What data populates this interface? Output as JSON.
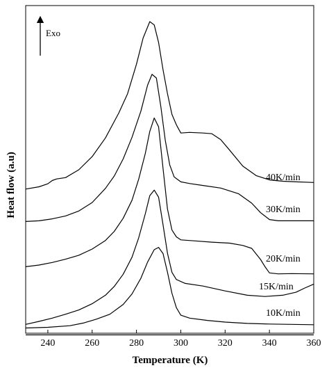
{
  "chart_data": {
    "type": "line",
    "title": "",
    "xlabel": "Temperature (K)",
    "ylabel": "Heat flow (a.u)",
    "xlim": [
      230,
      360
    ],
    "ylim": [
      0,
      100
    ],
    "xticks": [
      240,
      260,
      280,
      300,
      320,
      340,
      360
    ],
    "grid": false,
    "annotation": "Exo",
    "series": [
      {
        "name": "40K/min",
        "color": "#000000",
        "points": [
          [
            230,
            44.0
          ],
          [
            236,
            44.7
          ],
          [
            240,
            45.6
          ],
          [
            242,
            46.6
          ],
          [
            244,
            47.1
          ],
          [
            248,
            47.5
          ],
          [
            254,
            49.9
          ],
          [
            260,
            53.9
          ],
          [
            266,
            59.6
          ],
          [
            272,
            67.2
          ],
          [
            276,
            73.1
          ],
          [
            280,
            82.1
          ],
          [
            283,
            90.1
          ],
          [
            286,
            95.1
          ],
          [
            288,
            94.1
          ],
          [
            290,
            88.7
          ],
          [
            292,
            80.4
          ],
          [
            294,
            73.1
          ],
          [
            296,
            66.8
          ],
          [
            298,
            63.6
          ],
          [
            300,
            61.1
          ],
          [
            304,
            61.3
          ],
          [
            310,
            61.1
          ],
          [
            314,
            60.9
          ],
          [
            318,
            59.1
          ],
          [
            322,
            55.9
          ],
          [
            328,
            51.0
          ],
          [
            334,
            48.1
          ],
          [
            340,
            46.8
          ],
          [
            346,
            46.4
          ],
          [
            352,
            46.2
          ],
          [
            360,
            46.0
          ]
        ]
      },
      {
        "name": "30K/min",
        "color": "#000000",
        "points": [
          [
            230,
            34.1
          ],
          [
            236,
            34.3
          ],
          [
            242,
            34.9
          ],
          [
            248,
            35.8
          ],
          [
            254,
            37.3
          ],
          [
            260,
            39.9
          ],
          [
            266,
            44.2
          ],
          [
            270,
            48.0
          ],
          [
            274,
            53.2
          ],
          [
            278,
            59.8
          ],
          [
            282,
            67.8
          ],
          [
            285,
            75.7
          ],
          [
            287,
            79.0
          ],
          [
            289,
            77.9
          ],
          [
            291,
            69.2
          ],
          [
            293,
            58.9
          ],
          [
            295,
            51.4
          ],
          [
            297,
            47.7
          ],
          [
            300,
            46.2
          ],
          [
            304,
            45.7
          ],
          [
            310,
            45.1
          ],
          [
            318,
            44.3
          ],
          [
            326,
            42.6
          ],
          [
            332,
            39.7
          ],
          [
            336,
            36.8
          ],
          [
            340,
            34.7
          ],
          [
            344,
            34.3
          ],
          [
            350,
            34.3
          ],
          [
            360,
            34.3
          ]
        ]
      },
      {
        "name": "20K/min",
        "color": "#000000",
        "points": [
          [
            230,
            20.3
          ],
          [
            236,
            20.8
          ],
          [
            242,
            21.6
          ],
          [
            248,
            22.6
          ],
          [
            254,
            23.8
          ],
          [
            260,
            25.7
          ],
          [
            266,
            28.3
          ],
          [
            270,
            31.1
          ],
          [
            274,
            35.1
          ],
          [
            278,
            40.6
          ],
          [
            281,
            47.0
          ],
          [
            284,
            54.9
          ],
          [
            286,
            61.6
          ],
          [
            288,
            65.7
          ],
          [
            290,
            63.0
          ],
          [
            292,
            50.3
          ],
          [
            294,
            37.9
          ],
          [
            296,
            31.5
          ],
          [
            298,
            29.4
          ],
          [
            300,
            28.5
          ],
          [
            306,
            28.2
          ],
          [
            314,
            27.8
          ],
          [
            322,
            27.5
          ],
          [
            328,
            26.8
          ],
          [
            332,
            25.9
          ],
          [
            336,
            22.5
          ],
          [
            338,
            20.3
          ],
          [
            340,
            18.4
          ],
          [
            344,
            18.1
          ],
          [
            350,
            18.2
          ],
          [
            360,
            18.1
          ]
        ]
      },
      {
        "name": "15K/min",
        "color": "#000000",
        "points": [
          [
            230,
            2.7
          ],
          [
            236,
            3.6
          ],
          [
            242,
            4.6
          ],
          [
            248,
            5.8
          ],
          [
            254,
            7.1
          ],
          [
            260,
            9.0
          ],
          [
            266,
            11.6
          ],
          [
            270,
            14.3
          ],
          [
            274,
            18.0
          ],
          [
            278,
            23.2
          ],
          [
            281,
            29.1
          ],
          [
            284,
            36.5
          ],
          [
            286,
            42.0
          ],
          [
            288,
            43.7
          ],
          [
            290,
            41.5
          ],
          [
            292,
            33.1
          ],
          [
            294,
            24.4
          ],
          [
            296,
            18.6
          ],
          [
            298,
            16.4
          ],
          [
            302,
            15.2
          ],
          [
            310,
            14.4
          ],
          [
            320,
            12.9
          ],
          [
            330,
            11.6
          ],
          [
            338,
            11.2
          ],
          [
            346,
            11.6
          ],
          [
            352,
            12.5
          ],
          [
            356,
            13.8
          ],
          [
            360,
            15.0
          ]
        ]
      },
      {
        "name": "10K/min",
        "color": "#000000",
        "points": [
          [
            230,
            1.6
          ],
          [
            240,
            1.8
          ],
          [
            250,
            2.3
          ],
          [
            256,
            3.1
          ],
          [
            262,
            4.3
          ],
          [
            268,
            5.8
          ],
          [
            274,
            8.8
          ],
          [
            278,
            12.0
          ],
          [
            282,
            16.8
          ],
          [
            285,
            21.7
          ],
          [
            288,
            25.5
          ],
          [
            290,
            26.2
          ],
          [
            292,
            24.3
          ],
          [
            294,
            18.6
          ],
          [
            296,
            12.2
          ],
          [
            298,
            7.8
          ],
          [
            300,
            5.5
          ],
          [
            304,
            4.6
          ],
          [
            312,
            3.9
          ],
          [
            320,
            3.4
          ],
          [
            330,
            3.0
          ],
          [
            340,
            2.8
          ],
          [
            350,
            2.7
          ],
          [
            360,
            2.6
          ]
        ]
      },
      {
        "name": "",
        "color": "#000000",
        "points": [
          [
            230,
            -0.5
          ],
          [
            360,
            -0.5
          ]
        ]
      }
    ],
    "labels": [
      "40K/min",
      "30K/min",
      "20K/min",
      "15K/min",
      "10K/min"
    ]
  }
}
